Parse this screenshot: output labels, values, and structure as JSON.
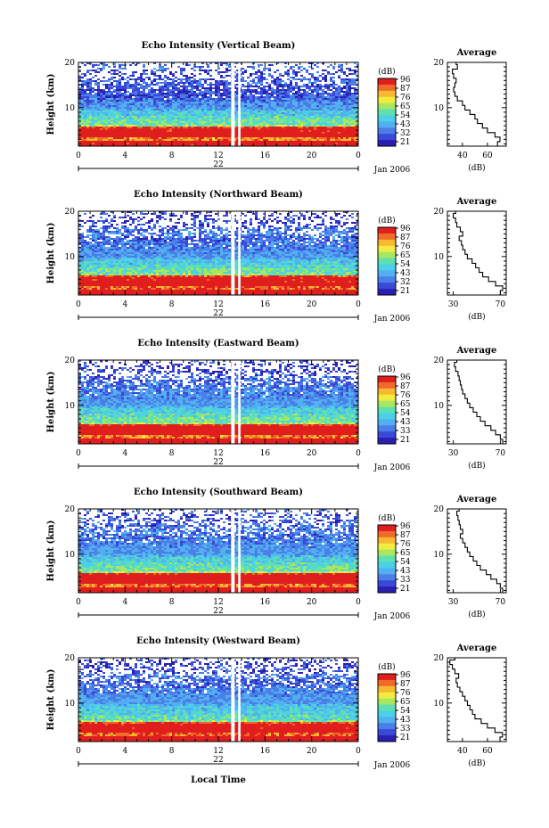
{
  "figure": {
    "xlabel": "Local Time"
  },
  "colorbar": {
    "unit": "(dB)",
    "ticks": [
      "96",
      "87",
      "76",
      "65",
      "54",
      "43",
      "32",
      "21"
    ],
    "ticks_by_panel": [
      [
        "96",
        "87",
        "76",
        "65",
        "54",
        "43",
        "32",
        "21"
      ],
      [
        "96",
        "87",
        "76",
        "65",
        "54",
        "43",
        "32",
        "21"
      ],
      [
        "96",
        "87",
        "76",
        "65",
        "54",
        "43",
        "33",
        "21"
      ],
      [
        "96",
        "87",
        "76",
        "65",
        "54",
        "43",
        "33",
        "21"
      ],
      [
        "96",
        "87",
        "76",
        "65",
        "54",
        "43",
        "33",
        "21"
      ]
    ],
    "colors": [
      "#2a1fb0",
      "#3a49d8",
      "#4a7fe8",
      "#52b0f0",
      "#4ad0e8",
      "#5ee0b0",
      "#a8e860",
      "#f2ec40",
      "#f8b830",
      "#f06a2a",
      "#e01e1e"
    ]
  },
  "chart_data": [
    {
      "type": "heatmap",
      "title": "Echo Intensity (Vertical Beam)",
      "ylabel": "Height (km)",
      "xlabel": "Local Time",
      "x_ticks": [
        "0",
        "4",
        "8",
        "12",
        "16",
        "20",
        "0"
      ],
      "xlim": [
        0,
        24
      ],
      "y_ticks": [
        "10",
        "20"
      ],
      "ylim": [
        1.5,
        20
      ],
      "day_label": "22",
      "month_label": "Jan 2006",
      "colorbar_range_db": [
        21,
        96
      ],
      "data_gap_hours": [
        [
          13.1,
          13.4
        ],
        [
          13.7,
          13.9
        ]
      ],
      "profile": {
        "title": "Average",
        "xlabel": "(dB)",
        "x_ticks": [
          "40",
          "60"
        ],
        "xlim": [
          28,
          75
        ],
        "y_ticks": [
          "10",
          "20"
        ],
        "height_km": [
          2,
          3,
          4,
          5,
          6,
          7,
          8,
          9,
          10,
          11,
          12,
          13,
          14,
          15,
          16,
          17,
          18,
          19,
          20
        ],
        "avg_db": [
          68,
          70,
          66,
          60,
          56,
          52,
          50,
          46,
          42,
          40,
          36,
          34,
          33,
          34,
          35,
          33,
          32,
          36,
          35
        ]
      }
    },
    {
      "type": "heatmap",
      "title": "Echo Intensity (Northward Beam)",
      "ylabel": "Height (km)",
      "xlabel": "Local Time",
      "x_ticks": [
        "0",
        "4",
        "8",
        "12",
        "16",
        "20",
        "0"
      ],
      "xlim": [
        0,
        24
      ],
      "y_ticks": [
        "10",
        "20"
      ],
      "ylim": [
        1.5,
        20
      ],
      "day_label": "22",
      "month_label": "Jan 2006",
      "colorbar_range_db": [
        21,
        96
      ],
      "data_gap_hours": [
        [
          13.1,
          13.4
        ],
        [
          13.7,
          13.9
        ]
      ],
      "profile": {
        "title": "Average",
        "xlabel": "(dB)",
        "x_ticks": [
          "30",
          "70"
        ],
        "xlim": [
          25,
          75
        ],
        "y_ticks": [
          "10",
          "20"
        ],
        "height_km": [
          2,
          3,
          4,
          5,
          6,
          7,
          8,
          9,
          10,
          11,
          12,
          13,
          14,
          15,
          16,
          17,
          18,
          19,
          20
        ],
        "avg_db": [
          70,
          72,
          66,
          60,
          55,
          52,
          49,
          46,
          42,
          40,
          38,
          37,
          35,
          38,
          36,
          33,
          32,
          30,
          32
        ]
      }
    },
    {
      "type": "heatmap",
      "title": "Echo Intensity (Eastward Beam)",
      "ylabel": "Height (km)",
      "xlabel": "Local Time",
      "x_ticks": [
        "0",
        "4",
        "8",
        "12",
        "16",
        "20",
        "0"
      ],
      "xlim": [
        0,
        24
      ],
      "y_ticks": [
        "10",
        "20"
      ],
      "ylim": [
        1.5,
        20
      ],
      "day_label": "22",
      "month_label": "Jan 2006",
      "colorbar_range_db": [
        21,
        96
      ],
      "data_gap_hours": [
        [
          13.1,
          13.4
        ],
        [
          13.7,
          13.9
        ]
      ],
      "profile": {
        "title": "Average",
        "xlabel": "(dB)",
        "x_ticks": [
          "30",
          "70"
        ],
        "xlim": [
          25,
          75
        ],
        "y_ticks": [
          "10",
          "20"
        ],
        "height_km": [
          2,
          3,
          4,
          5,
          6,
          7,
          8,
          9,
          10,
          11,
          12,
          13,
          14,
          15,
          16,
          17,
          18,
          19,
          20
        ],
        "avg_db": [
          72,
          70,
          66,
          62,
          57,
          53,
          50,
          47,
          44,
          42,
          40,
          38,
          37,
          36,
          35,
          34,
          32,
          31,
          33
        ]
      }
    },
    {
      "type": "heatmap",
      "title": "Echo Intensity (Southward Beam)",
      "ylabel": "Height (km)",
      "xlabel": "Local Time",
      "x_ticks": [
        "0",
        "4",
        "8",
        "12",
        "16",
        "20",
        "0"
      ],
      "xlim": [
        0,
        24
      ],
      "y_ticks": [
        "10",
        "20"
      ],
      "ylim": [
        1.5,
        20
      ],
      "day_label": "22",
      "month_label": "Jan 2006",
      "colorbar_range_db": [
        21,
        96
      ],
      "data_gap_hours": [
        [
          13.1,
          13.4
        ],
        [
          13.7,
          13.9
        ]
      ],
      "profile": {
        "title": "Average",
        "xlabel": "(dB)",
        "x_ticks": [
          "30",
          "70"
        ],
        "xlim": [
          25,
          75
        ],
        "y_ticks": [
          "10",
          "20"
        ],
        "height_km": [
          2,
          3,
          4,
          5,
          6,
          7,
          8,
          9,
          10,
          11,
          12,
          13,
          14,
          15,
          16,
          17,
          18,
          19,
          20
        ],
        "avg_db": [
          72,
          70,
          67,
          62,
          58,
          53,
          50,
          47,
          44,
          42,
          40,
          38,
          36,
          38,
          36,
          35,
          34,
          33,
          35
        ]
      }
    },
    {
      "type": "heatmap",
      "title": "Echo Intensity (Westward Beam)",
      "ylabel": "Height (km)",
      "xlabel": "Local Time",
      "x_ticks": [
        "0",
        "4",
        "8",
        "12",
        "16",
        "20",
        "0"
      ],
      "xlim": [
        0,
        24
      ],
      "y_ticks": [
        "10",
        "20"
      ],
      "ylim": [
        1.5,
        20
      ],
      "day_label": "22",
      "month_label": "Jan 2006",
      "colorbar_range_db": [
        21,
        96
      ],
      "data_gap_hours": [
        [
          13.1,
          13.4
        ],
        [
          13.7,
          13.9
        ]
      ],
      "profile": {
        "title": "Average",
        "xlabel": "(dB)",
        "x_ticks": [
          "40",
          "60"
        ],
        "xlim": [
          28,
          75
        ],
        "y_ticks": [
          "10",
          "20"
        ],
        "height_km": [
          2,
          3,
          4,
          5,
          6,
          7,
          8,
          9,
          10,
          11,
          12,
          13,
          14,
          15,
          16,
          17,
          18,
          19,
          20
        ],
        "avg_db": [
          70,
          72,
          66,
          60,
          55,
          50,
          48,
          46,
          44,
          42,
          40,
          38,
          36,
          35,
          37,
          34,
          32,
          30,
          34
        ]
      }
    }
  ]
}
